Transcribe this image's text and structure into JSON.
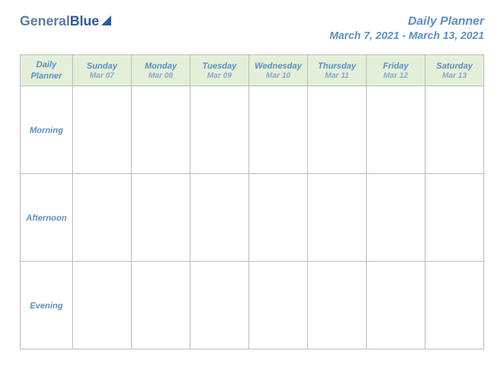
{
  "logo": {
    "part1": "General",
    "part2": "Blue"
  },
  "header": {
    "title": "Daily Planner",
    "date_range": "March 7, 2021 - March 13, 2021"
  },
  "table": {
    "corner_label": "Daily Planner",
    "corner_bg": "#e4efd9",
    "header_bg": "#e4efd9",
    "row_label_bg": "#ededed",
    "border_color": "#b8b8b8",
    "text_color": "#5a8fc7",
    "subtext_color": "#8aa8c8",
    "days": [
      {
        "name": "Sunday",
        "date": "Mar 07"
      },
      {
        "name": "Monday",
        "date": "Mar 08"
      },
      {
        "name": "Tuesday",
        "date": "Mar 09"
      },
      {
        "name": "Wednesday",
        "date": "Mar 10"
      },
      {
        "name": "Thursday",
        "date": "Mar 11"
      },
      {
        "name": "Friday",
        "date": "Mar 12"
      },
      {
        "name": "Saturday",
        "date": "Mar 13"
      }
    ],
    "periods": [
      "Morning",
      "Afternoon",
      "Evening"
    ]
  }
}
